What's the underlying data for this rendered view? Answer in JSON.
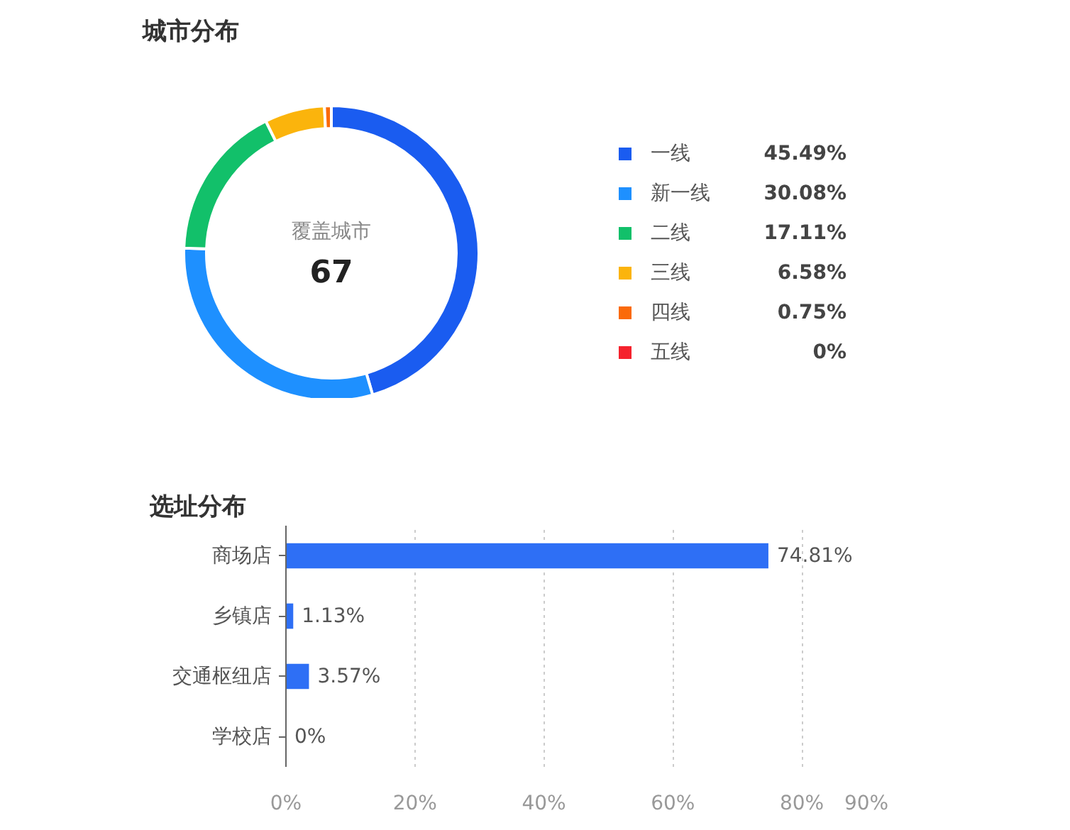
{
  "chart_data": [
    {
      "type": "donut",
      "title": "城市分布",
      "categories": [
        "一线",
        "新一线",
        "二线",
        "三线",
        "四线",
        "五线"
      ],
      "values": [
        45.49,
        30.08,
        17.11,
        6.58,
        0.75,
        0
      ],
      "colors": [
        "#1a5cf0",
        "#1e90ff",
        "#12c06a",
        "#fbb40c",
        "#fa6a0a",
        "#f5222d"
      ],
      "value_labels": [
        "45.49%",
        "30.08%",
        "17.11%",
        "6.58%",
        "0.75%",
        "0%"
      ],
      "legend": "right",
      "annotations": [
        "覆盖城市",
        "67"
      ]
    },
    {
      "type": "bar",
      "orientation": "horizontal",
      "title": "选址分布",
      "categories": [
        "商场店",
        "乡镇店",
        "交通枢纽店",
        "学校店"
      ],
      "values": [
        74.81,
        1.13,
        3.57,
        0
      ],
      "color": "#2e6ff5",
      "value_labels": [
        "74.81%",
        "1.13%",
        "3.57%",
        "0%"
      ],
      "xlim": [
        0,
        90
      ],
      "xticks": [
        {
          "value": 0,
          "label": "0%"
        },
        {
          "value": 20,
          "label": "20%"
        },
        {
          "value": 40,
          "label": "40%"
        },
        {
          "value": 60,
          "label": "60%"
        },
        {
          "value": 80,
          "label": "80%"
        },
        {
          "value": 90,
          "label": "90%"
        }
      ],
      "grid": "x"
    }
  ]
}
